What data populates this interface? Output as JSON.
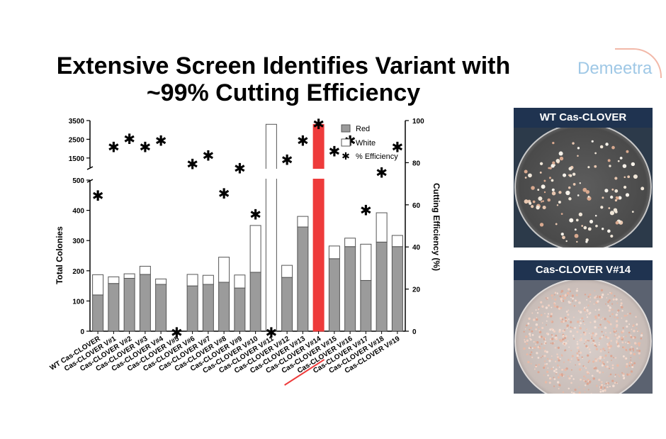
{
  "title_line1": "Extensive Screen Identifies Variant with",
  "title_line2": "~99% Cutting Efficiency",
  "logo_text": "Demeetra",
  "panels": [
    {
      "label": "WT Cas-CLOVER"
    },
    {
      "label": "Cas-CLOVER V#14"
    }
  ],
  "chart_data": {
    "type": "bar",
    "categories": [
      "WT Cas-CLOVER",
      "Cas-CLOVER V#1",
      "Cas-CLOVER V#2",
      "Cas-CLOVER V#3",
      "Cas-CLOVER V#4",
      "Cas-CLOVER V#5",
      "Cas-CLOVER V#6",
      "Cas-CLOVER V#7",
      "Cas-CLOVER V#8",
      "Cas-CLOVER V#9",
      "Cas-CLOVER V#10",
      "Cas-CLOVER V#11",
      "Cas-CLOVER V#12",
      "Cas-CLOVER V#13",
      "Cas-CLOVER V#14",
      "Cas-CLOVER V#15",
      "Cas-CLOVER V#16",
      "Cas-CLOVER V#17",
      "Cas-CLOVER V#18",
      "Cas-CLOVER V#19"
    ],
    "highlight_category": "Cas-CLOVER V#14",
    "series": [
      {
        "name": "Red",
        "color": "#9b9b9b",
        "values": [
          120,
          158,
          175,
          188,
          155,
          0,
          150,
          155,
          162,
          143,
          195,
          0,
          178,
          345,
          3300,
          240,
          280,
          168,
          295,
          280
        ]
      },
      {
        "name": "White",
        "color": "#ffffff",
        "values": [
          67,
          22,
          15,
          27,
          18,
          0,
          38,
          30,
          83,
          43,
          155,
          3300,
          40,
          35,
          0,
          42,
          28,
          120,
          97,
          37
        ]
      },
      {
        "name": "% Efficiency",
        "type": "scatter",
        "marker": "*",
        "values": [
          65,
          88,
          92,
          88,
          91,
          0,
          80,
          84,
          66,
          78,
          56,
          0,
          82,
          91,
          99,
          86,
          91,
          58,
          76,
          88
        ]
      }
    ],
    "highlight_color": "#ee3b3b",
    "ylabel": "Total Colonies",
    "y2label": "Cutting Efficiency (%)",
    "y_ticks_lower": [
      "0",
      "100",
      "200",
      "300",
      "400",
      "500"
    ],
    "y_ticks_upper": [
      "1500",
      "2500",
      "3500"
    ],
    "y2_ticks": [
      "0",
      "20",
      "40",
      "60",
      "80",
      "100"
    ],
    "y_lower_lim": [
      0,
      500
    ],
    "y_upper_lim": [
      500,
      3500
    ],
    "y2lim": [
      0,
      100
    ],
    "y_axis_break": true,
    "legend_position": "top-right"
  }
}
